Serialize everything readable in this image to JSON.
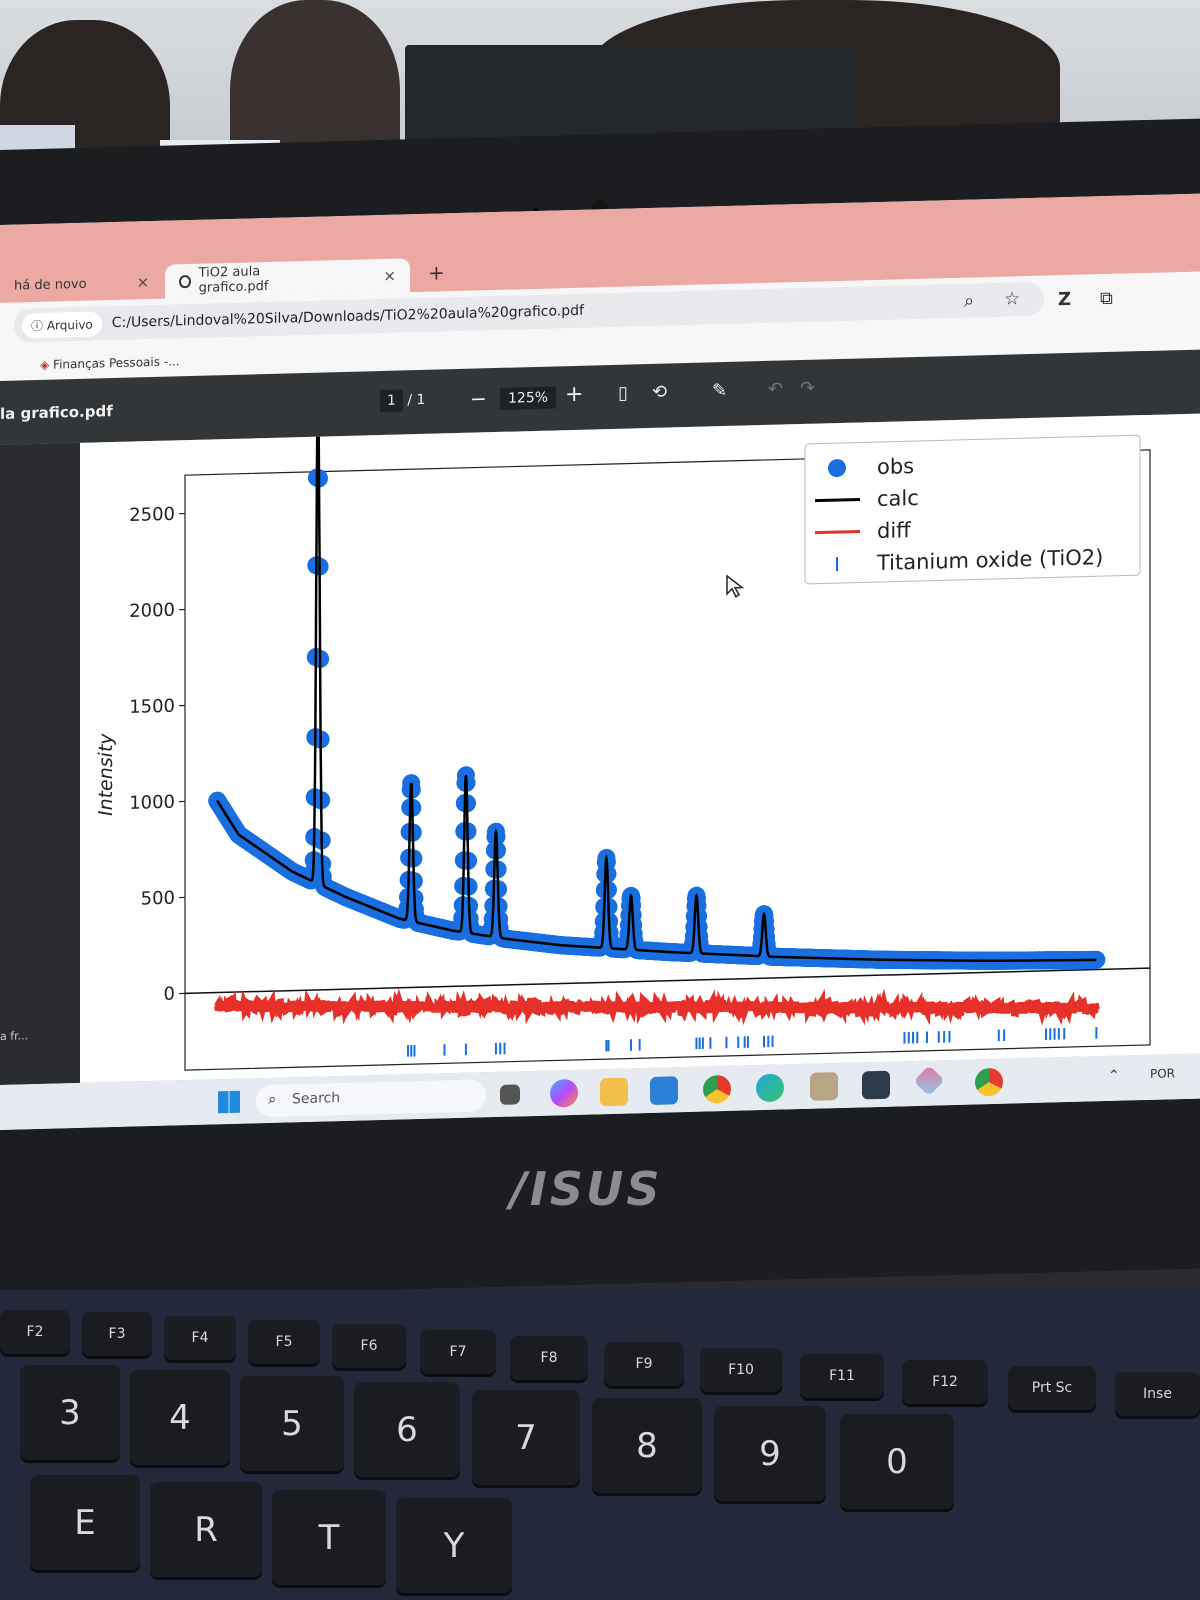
{
  "browser": {
    "tabs": [
      {
        "label": "há de novo",
        "close": "×"
      },
      {
        "label": "TiO2 aula grafico.pdf",
        "close": "×"
      }
    ],
    "new_tab": "+",
    "address": {
      "chip": "Arquivo",
      "url": "C:/Users/Lindoval%20Silva/Downloads/TiO2%20aula%20grafico.pdf"
    },
    "bookmark": "Finanças Pessoais -...",
    "icons": [
      "zoom-icon",
      "star-icon",
      "extension-icon"
    ]
  },
  "pdf_viewer": {
    "title": "la grafico.pdf",
    "page_current": "1",
    "page_sep": "/ 1",
    "zoom_out": "−",
    "zoom": "125%",
    "zoom_in": "+",
    "left_fragment": "a fr..."
  },
  "taskbar": {
    "search_placeholder": "Search",
    "tray_text": "POR"
  },
  "laptop": {
    "brand": "/ISUS",
    "keys": {
      "fn_row": [
        "F2",
        "F3",
        "F4",
        "F5",
        "F6",
        "F7",
        "F8",
        "F9",
        "F10",
        "F11",
        "F12",
        "Prt Sc",
        "Inse"
      ],
      "num_row": [
        "3",
        "4",
        "5",
        "6",
        "7",
        "8",
        "9",
        "0"
      ],
      "letter_row": [
        "E",
        "R",
        "T",
        "Y"
      ]
    }
  },
  "chart_data": {
    "type": "line",
    "title": "",
    "xlabel": "",
    "ylabel": "Intensity",
    "ylim": [
      -400,
      2700
    ],
    "xlim": [
      15,
      105
    ],
    "yticks": [
      0,
      500,
      1000,
      1500,
      2000,
      2500
    ],
    "grid": false,
    "legend_position": "top-right",
    "background": "light",
    "series": [
      {
        "name": "obs",
        "kind": "scatter",
        "color": "#1a6fe0"
      },
      {
        "name": "calc",
        "kind": "line",
        "color": "#000000"
      },
      {
        "name": "diff",
        "kind": "line",
        "color": "#e8302a"
      },
      {
        "name": "Titanium oxide (TiO2)",
        "kind": "ticks",
        "color": "#1a6fe0"
      }
    ],
    "background_curve": {
      "description": "decay",
      "x": [
        18,
        20,
        25,
        30,
        35,
        40,
        45,
        50,
        60,
        70,
        80,
        90,
        100
      ],
      "y": [
        1000,
        820,
        620,
        480,
        360,
        290,
        240,
        200,
        150,
        110,
        80,
        60,
        50
      ]
    },
    "peaks": [
      {
        "x": 27.4,
        "height": 2570
      },
      {
        "x": 36.1,
        "height": 720
      },
      {
        "x": 41.2,
        "height": 820
      },
      {
        "x": 44.0,
        "height": 550
      },
      {
        "x": 54.3,
        "height": 470
      },
      {
        "x": 56.6,
        "height": 280
      },
      {
        "x": 62.7,
        "height": 300
      },
      {
        "x": 69.0,
        "height": 220
      }
    ],
    "diff_offset": -70,
    "reflections": [
      35.8,
      36.1,
      36.4,
      39.2,
      41.2,
      44.0,
      44.4,
      44.8,
      54.3,
      54.5,
      56.6,
      57.4,
      62.7,
      63.0,
      63.3,
      64.0,
      65.5,
      66.6,
      67.2,
      67.5,
      69.0,
      69.4,
      69.8,
      82.1,
      82.5,
      82.9,
      83.3,
      84.2,
      85.3,
      85.8,
      86.3,
      90.9,
      91.4,
      95.3,
      95.7,
      96.1,
      96.5,
      97.0,
      100.0
    ]
  }
}
